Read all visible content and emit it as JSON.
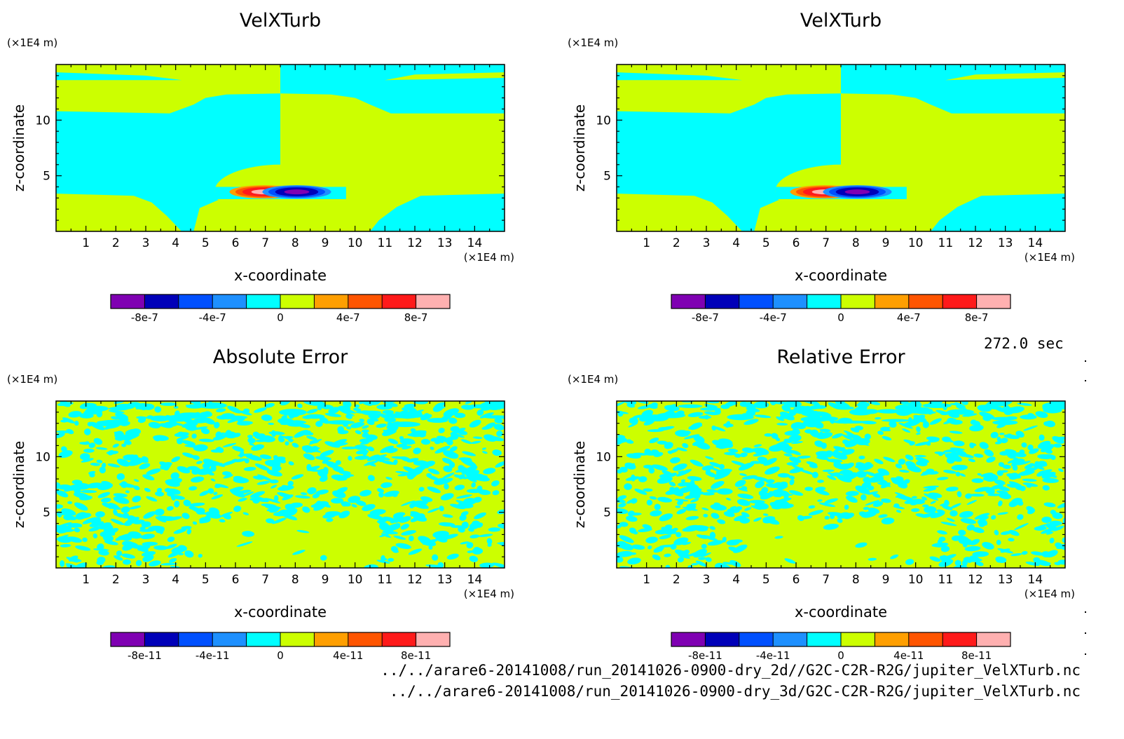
{
  "timestamp": "272.0 sec",
  "footer": {
    "line1": "../../arare6-20141008/run_20141026-0900-dry_2d//G2C-C2R-R2G/jupiter_VelXTurb.nc",
    "line2": "../../arare6-20141008/run_20141026-0900-dry_3d/G2C-C2R-R2G/jupiter_VelXTurb.nc"
  },
  "colors": {
    "levels": [
      "#7f00b2",
      "#0000b8",
      "#0050ff",
      "#1e90ff",
      "#00ffff",
      "#ccff00",
      "#ff9f00",
      "#ff5500",
      "#ff1a1a",
      "#ffb0b0"
    ],
    "cyan": "#00ffff",
    "lime": "#ccff00"
  },
  "chart_data": [
    {
      "type": "heatmap",
      "title": "VelXTurb",
      "xlabel": "x-coordinate",
      "ylabel": "z-coordinate",
      "x_unit": "(×1E4 m)",
      "y_unit": "(×1E4 m)",
      "xlim": [
        0,
        15
      ],
      "ylim": [
        0,
        15
      ],
      "x_ticks": [
        1,
        2,
        3,
        4,
        5,
        6,
        7,
        8,
        9,
        10,
        11,
        12,
        13,
        14
      ],
      "y_ticks": [
        5,
        10
      ],
      "field": "velxturb",
      "colorbar": {
        "ticks": [
          "-8e-7",
          "-4e-7",
          "0",
          "4e-7",
          "8e-7"
        ]
      }
    },
    {
      "type": "heatmap",
      "title": "VelXTurb",
      "xlabel": "x-coordinate",
      "ylabel": "z-coordinate",
      "x_unit": "(×1E4 m)",
      "y_unit": "(×1E4 m)",
      "xlim": [
        0,
        15
      ],
      "ylim": [
        0,
        15
      ],
      "x_ticks": [
        1,
        2,
        3,
        4,
        5,
        6,
        7,
        8,
        9,
        10,
        11,
        12,
        13,
        14
      ],
      "y_ticks": [
        5,
        10
      ],
      "field": "velxturb",
      "colorbar": {
        "ticks": [
          "-8e-7",
          "-4e-7",
          "0",
          "4e-7",
          "8e-7"
        ]
      }
    },
    {
      "type": "heatmap",
      "title": "Absolute Error",
      "xlabel": "x-coordinate",
      "ylabel": "z-coordinate",
      "x_unit": "(×1E4 m)",
      "y_unit": "(×1E4 m)",
      "xlim": [
        0,
        15
      ],
      "ylim": [
        0,
        15
      ],
      "x_ticks": [
        1,
        2,
        3,
        4,
        5,
        6,
        7,
        8,
        9,
        10,
        11,
        12,
        13,
        14
      ],
      "y_ticks": [
        5,
        10
      ],
      "field": "noise-absolute",
      "colorbar": {
        "ticks": [
          "-8e-11",
          "-4e-11",
          "0",
          "4e-11",
          "8e-11"
        ]
      }
    },
    {
      "type": "heatmap",
      "title": "Relative Error",
      "xlabel": "x-coordinate",
      "ylabel": "z-coordinate",
      "x_unit": "(×1E4 m)",
      "y_unit": "(×1E4 m)",
      "xlim": [
        0,
        15
      ],
      "ylim": [
        0,
        15
      ],
      "x_ticks": [
        1,
        2,
        3,
        4,
        5,
        6,
        7,
        8,
        9,
        10,
        11,
        12,
        13,
        14
      ],
      "y_ticks": [
        5,
        10
      ],
      "field": "noise-relative",
      "colorbar": {
        "ticks": [
          "-8e-11",
          "-4e-11",
          "0",
          "4e-11",
          "8e-11"
        ]
      }
    }
  ]
}
